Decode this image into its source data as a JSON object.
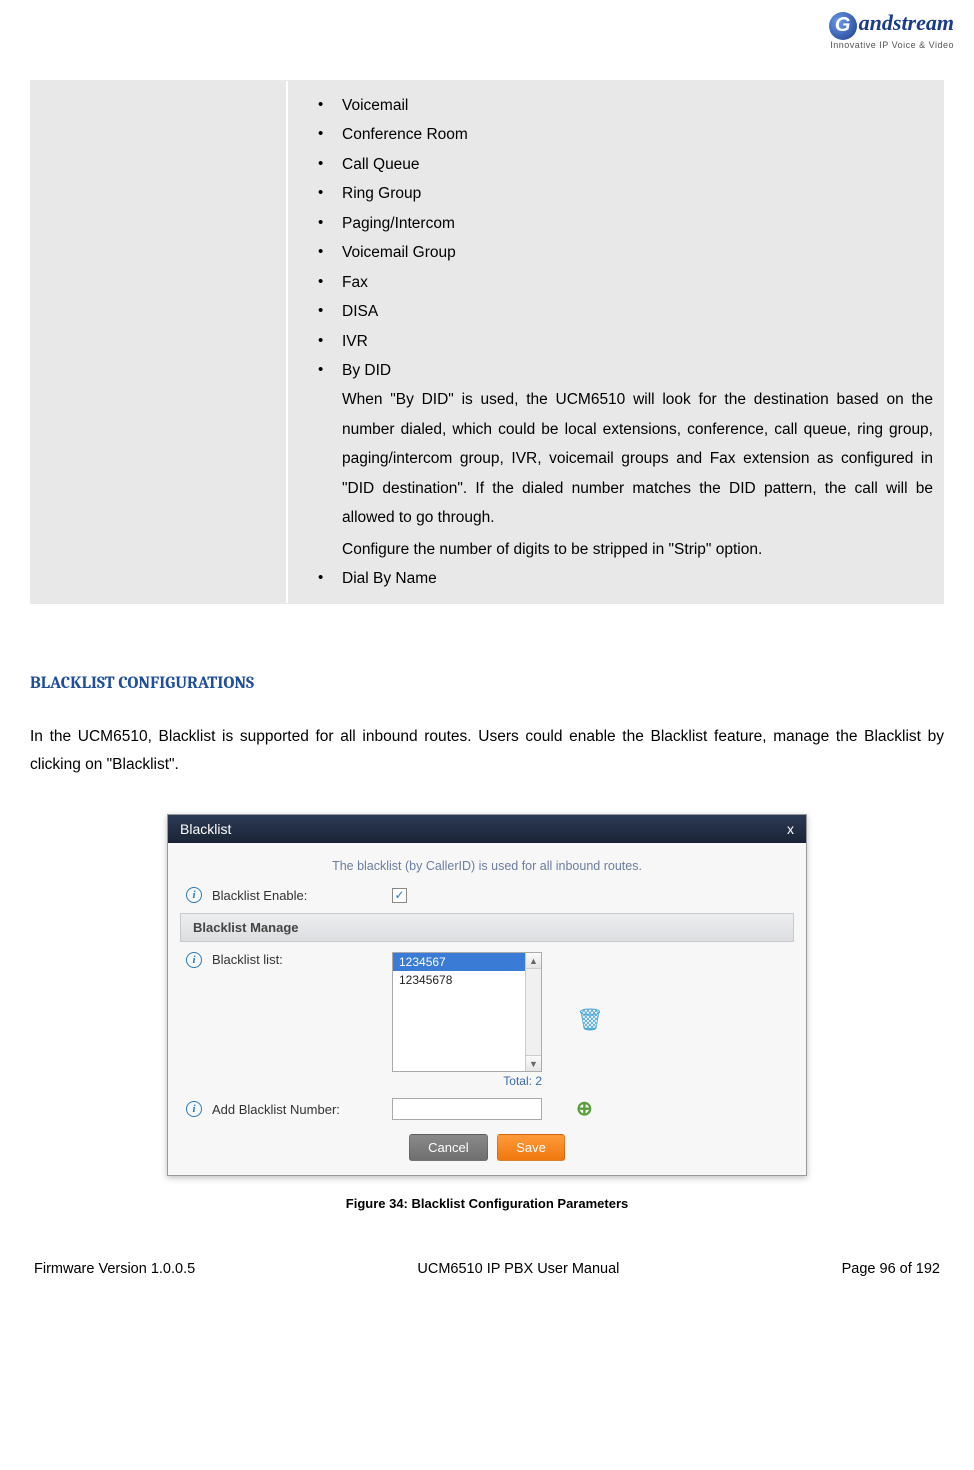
{
  "logo": {
    "text": "andstream",
    "initial": "G",
    "tagline": "Innovative IP Voice & Video"
  },
  "bullets": {
    "items": [
      "Voicemail",
      "Conference Room",
      "Call Queue",
      "Ring Group",
      "Paging/Intercom",
      "Voicemail Group",
      "Fax",
      "DISA",
      "IVR",
      "By DID"
    ],
    "did_desc": "When \"By DID\" is used, the UCM6510 will look for the destination based on the number dialed, which could be local extensions, conference, call queue, ring group, paging/intercom group, IVR, voicemail groups and Fax extension as configured in \"DID destination\". If the dialed number matches the DID pattern, the call will be allowed to go through.",
    "did_desc2": "Configure the number of digits to be stripped in \"Strip\" option.",
    "last_item": "Dial By Name"
  },
  "section_heading": "BLACKLIST CONFIGURATIONS",
  "body_para": "In the UCM6510, Blacklist is supported for all inbound routes. Users could enable the Blacklist feature, manage the Blacklist by clicking on \"Blacklist\".",
  "dialog": {
    "title": "Blacklist",
    "close": "x",
    "hint": "The blacklist (by CallerID) is used for all inbound routes.",
    "enable_label": "Blacklist Enable:",
    "enable_checked": true,
    "manage_header": "Blacklist Manage",
    "list_label": "Blacklist list:",
    "list_items": [
      "1234567",
      "12345678"
    ],
    "list_selected_index": 0,
    "total_label": "Total: ",
    "total_value": "2",
    "add_label": "Add Blacklist Number:",
    "add_value": "",
    "cancel": "Cancel",
    "save": "Save"
  },
  "figure_caption": "Figure 34: Blacklist Configuration Parameters",
  "footer": {
    "left": "Firmware Version 1.0.0.5",
    "center": "UCM6510 IP PBX User Manual",
    "right": "Page 96 of 192"
  },
  "colors": {
    "heading": "#1f4e9c",
    "grey_bg": "#e8e8e8",
    "dialog_header": "#1a2435",
    "accent_orange": "#f0780f"
  }
}
